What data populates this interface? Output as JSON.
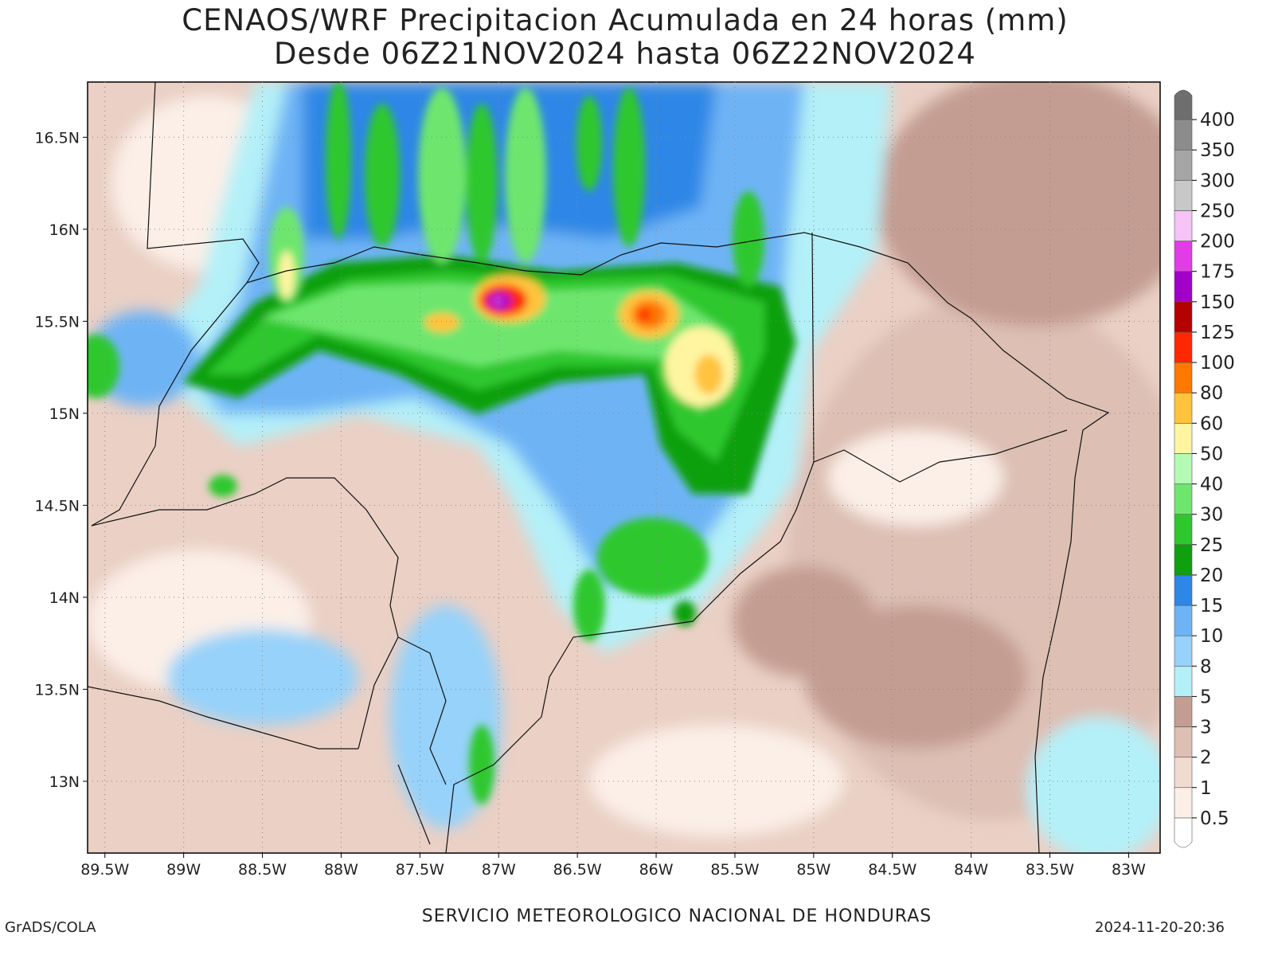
{
  "title": "CENAOS/WRF Precipitacion Acumulada en 24 horas (mm)",
  "subtitle": "Desde 06Z21NOV2024 hasta 06Z22NOV2024",
  "footer": {
    "left": "GrADS/COLA",
    "center": "SERVICIO METEOROLOGICO NACIONAL DE HONDURAS",
    "right": "2024-11-20-20:36"
  },
  "map": {
    "xlim": [
      -89.61,
      -82.8
    ],
    "ylim": [
      12.61,
      16.8
    ],
    "xticks": [
      {
        "value": -89.5,
        "label": "89.5W"
      },
      {
        "value": -89,
        "label": "89W"
      },
      {
        "value": -88.5,
        "label": "88.5W"
      },
      {
        "value": -88,
        "label": "88W"
      },
      {
        "value": -87.5,
        "label": "87.5W"
      },
      {
        "value": -87,
        "label": "87W"
      },
      {
        "value": -86.5,
        "label": "86.5W"
      },
      {
        "value": -86,
        "label": "86W"
      },
      {
        "value": -85.5,
        "label": "85.5W"
      },
      {
        "value": -85,
        "label": "85W"
      },
      {
        "value": -84.5,
        "label": "84.5W"
      },
      {
        "value": -84,
        "label": "84W"
      },
      {
        "value": -83.5,
        "label": "83.5W"
      },
      {
        "value": -83,
        "label": "83W"
      }
    ],
    "yticks": [
      {
        "value": 13,
        "label": "13N"
      },
      {
        "value": 13.5,
        "label": "13.5N"
      },
      {
        "value": 14,
        "label": "14N"
      },
      {
        "value": 14.5,
        "label": "14.5N"
      },
      {
        "value": 15,
        "label": "15N"
      },
      {
        "value": 15.5,
        "label": "15.5N"
      },
      {
        "value": 16,
        "label": "16N"
      },
      {
        "value": 16.5,
        "label": "16.5N"
      }
    ]
  },
  "colorbar": {
    "levels": [
      0.5,
      1,
      2,
      3,
      5,
      8,
      10,
      15,
      20,
      25,
      30,
      40,
      50,
      60,
      80,
      100,
      125,
      150,
      175,
      200,
      250,
      300,
      350,
      400
    ],
    "colors": [
      "#ffffff",
      "#fbefe7",
      "#f0dbd1",
      "#ddbfb4",
      "#c49d92",
      "#b4f0f8",
      "#96d2fa",
      "#6eb4f5",
      "#2d87e6",
      "#0fa00f",
      "#2dc82d",
      "#6ee66e",
      "#b4fab4",
      "#fff5a0",
      "#ffc33c",
      "#ff7800",
      "#ff2800",
      "#b40000",
      "#a000c8",
      "#e13ce6",
      "#f5c3f5",
      "#c8c8c8",
      "#a5a5a5",
      "#8c8c8c",
      "#6e6e6e"
    ]
  }
}
